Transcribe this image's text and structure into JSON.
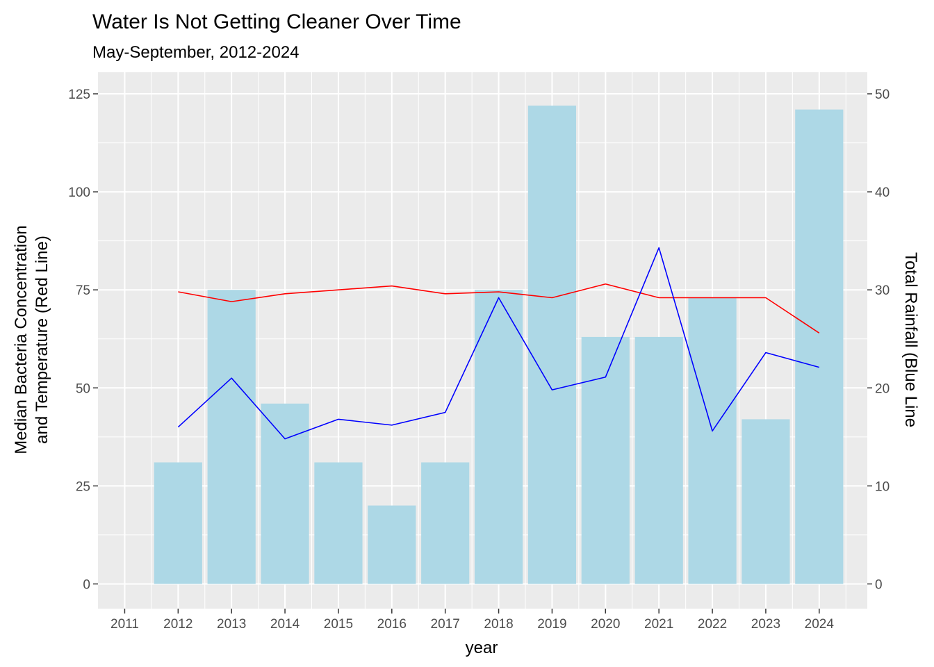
{
  "chart_data": {
    "type": "bar",
    "title": "Water Is Not Getting Cleaner Over Time",
    "subtitle": "May-September, 2012-2024",
    "xlabel": "year",
    "ylabel_line1": "Median Bacteria Concentration",
    "ylabel_line2": "and Temperature (Red Line)",
    "y2label": "Total Rainfall (Blue Line",
    "x_ticks": [
      "2011",
      "2012",
      "2013",
      "2014",
      "2015",
      "2016",
      "2017",
      "2018",
      "2019",
      "2020",
      "2021",
      "2022",
      "2023",
      "2024"
    ],
    "y_ticks": [
      "0",
      "25",
      "50",
      "75",
      "100",
      "125"
    ],
    "y2_ticks": [
      "0",
      "10",
      "20",
      "30",
      "40",
      "50"
    ],
    "xlim": [
      2010.5,
      2024.9
    ],
    "ylim": [
      -6.3,
      130.5
    ],
    "y_tick_values": [
      0,
      25,
      50,
      75,
      100,
      125
    ],
    "y2_tick_values": [
      0,
      10,
      20,
      30,
      40,
      50
    ],
    "y2_scale_factor": 2.5,
    "grid": true,
    "panel_background": "#ebebeb",
    "grid_color": "#ffffff",
    "years": [
      2012,
      2013,
      2014,
      2015,
      2016,
      2017,
      2018,
      2019,
      2020,
      2021,
      2022,
      2023,
      2024
    ],
    "series": [
      {
        "name": "Median Bacteria Concentration",
        "type": "bar",
        "color": "#add8e6",
        "values": [
          31,
          75,
          46,
          31,
          20,
          31,
          75,
          122,
          63,
          63,
          73,
          42,
          121
        ]
      },
      {
        "name": "Temperature",
        "type": "line",
        "axis": "left",
        "color": "#ff0000",
        "values": [
          74.5,
          72,
          74,
          75,
          76,
          74,
          74.5,
          73,
          76.5,
          73,
          73,
          73,
          64
        ]
      },
      {
        "name": "Total Rainfall",
        "type": "line",
        "axis": "right",
        "color": "#0000ff",
        "values": [
          16,
          21,
          14.8,
          16.8,
          16.2,
          17.5,
          29.2,
          19.8,
          21.1,
          34.3,
          15.6,
          23.6,
          22.1
        ]
      }
    ]
  }
}
